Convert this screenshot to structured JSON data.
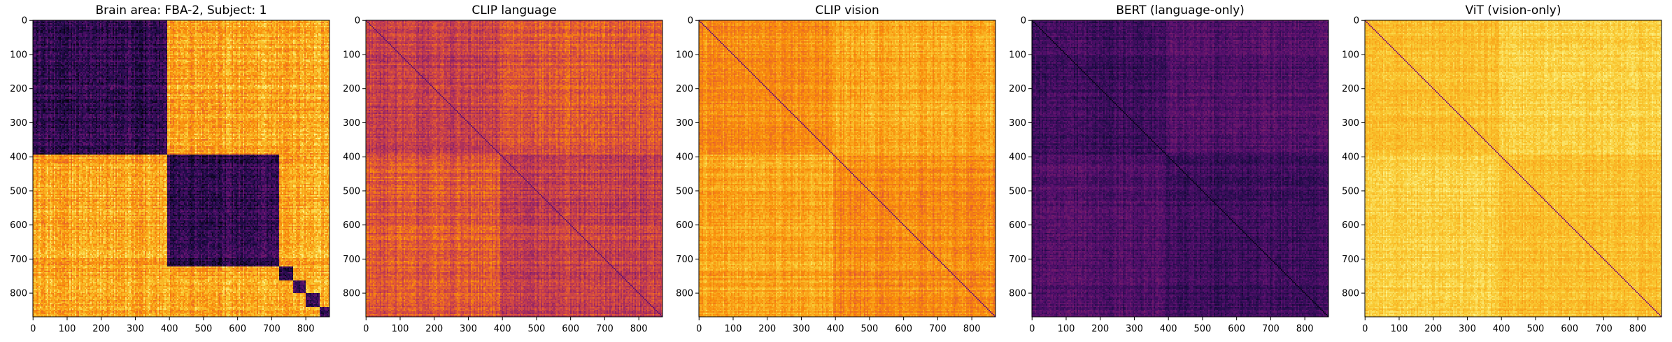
{
  "chart_data": [
    {
      "type": "heatmap",
      "title": "Brain area: FBA-2, Subject: 1",
      "colormap": "inferno",
      "n": 870,
      "xlim": [
        0,
        870
      ],
      "ylim": [
        870,
        0
      ],
      "xticks": [
        "0",
        "100",
        "200",
        "300",
        "400",
        "500",
        "600",
        "700",
        "800"
      ],
      "yticks": [
        "0",
        "100",
        "200",
        "300",
        "400",
        "500",
        "600",
        "700",
        "800"
      ],
      "block_boundaries": [
        0,
        390,
        720,
        760,
        800,
        840,
        870
      ],
      "base_level": 0.55,
      "contrast": 0.85,
      "stripe_strength": 0.18,
      "noise": 0.08,
      "diagonal_level": 0.15
    },
    {
      "type": "heatmap",
      "title": "CLIP language",
      "colormap": "inferno",
      "n": 870,
      "xlim": [
        0,
        870
      ],
      "ylim": [
        870,
        0
      ],
      "xticks": [
        "0",
        "100",
        "200",
        "300",
        "400",
        "500",
        "600",
        "700",
        "800"
      ],
      "yticks": [
        "0",
        "100",
        "200",
        "300",
        "400",
        "500",
        "600",
        "700",
        "800"
      ],
      "block_boundaries": [
        0,
        390,
        870
      ],
      "base_level": 0.58,
      "contrast": 0.12,
      "stripe_strength": 0.2,
      "noise": 0.07,
      "diagonal_level": 0.3
    },
    {
      "type": "heatmap",
      "title": "CLIP vision",
      "colormap": "inferno",
      "n": 870,
      "xlim": [
        0,
        870
      ],
      "ylim": [
        870,
        0
      ],
      "xticks": [
        "0",
        "100",
        "200",
        "300",
        "400",
        "500",
        "600",
        "700",
        "800"
      ],
      "yticks": [
        "0",
        "100",
        "200",
        "300",
        "400",
        "500",
        "600",
        "700",
        "800"
      ],
      "block_boundaries": [
        0,
        390,
        870
      ],
      "base_level": 0.78,
      "contrast": 0.08,
      "stripe_strength": 0.14,
      "noise": 0.05,
      "diagonal_level": 0.35
    },
    {
      "type": "heatmap",
      "title": "BERT (language-only)",
      "colormap": "inferno",
      "n": 870,
      "xlim": [
        0,
        870
      ],
      "ylim": [
        870,
        0
      ],
      "xticks": [
        "0",
        "100",
        "200",
        "300",
        "400",
        "500",
        "600",
        "700",
        "800"
      ],
      "yticks": [
        "0",
        "100",
        "200",
        "300",
        "400",
        "500",
        "600",
        "700",
        "800"
      ],
      "block_boundaries": [
        0,
        390,
        870
      ],
      "base_level": 0.22,
      "contrast": 0.06,
      "stripe_strength": 0.12,
      "noise": 0.05,
      "diagonal_level": 0.05
    },
    {
      "type": "heatmap",
      "title": "ViT (vision-only)",
      "colormap": "inferno",
      "n": 870,
      "xlim": [
        0,
        870
      ],
      "ylim": [
        870,
        0
      ],
      "xticks": [
        "0",
        "100",
        "200",
        "300",
        "400",
        "500",
        "600",
        "700",
        "800"
      ],
      "yticks": [
        "0",
        "100",
        "200",
        "300",
        "400",
        "500",
        "600",
        "700",
        "800"
      ],
      "block_boundaries": [
        0,
        390,
        870
      ],
      "base_level": 0.88,
      "contrast": 0.05,
      "stripe_strength": 0.08,
      "noise": 0.04,
      "diagonal_level": 0.4
    }
  ]
}
